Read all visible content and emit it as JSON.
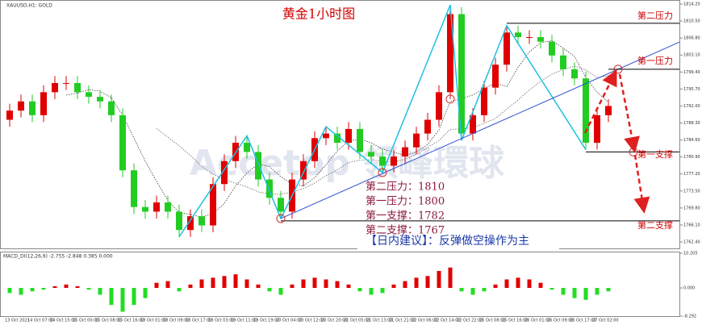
{
  "chart_data": [
    {
      "type": "candlestick",
      "title": "黄金1小时图",
      "symbol": "XAUUSD,H1: GOLD",
      "watermark": "Accetop 領峰環球",
      "up_color": "#e00000",
      "down_color": "#22cc22",
      "categories": [
        "13 Oct 2021",
        null,
        "14 Oct 07:00",
        null,
        "14 Oct 15:00",
        null,
        "15 Oct 00:00",
        null,
        "15 Oct 08:00",
        null,
        "15 Oct 16:00",
        null,
        "18 Oct 01:00",
        null,
        "18 Oct 09:00",
        null,
        "18 Oct 17:00",
        null,
        "19 Oct 03:00",
        null,
        "19 Oct 11:00",
        null,
        "19 Oct 19:00",
        null,
        "20 Oct 04:00",
        null,
        "20 Oct 12:00",
        null,
        "20 Oct 20:00",
        null,
        "21 Oct 05:00",
        null,
        "21 Oct 13:00",
        null,
        "21 Oct 21:00",
        null,
        "22 Oct 06:00",
        null,
        "22 Oct 14:00",
        null,
        "22 Oct 22:00",
        null,
        "25 Oct 08:00",
        null,
        "25 Oct 16:00",
        null,
        "26 Oct 01:00",
        null,
        "26 Oct 09:00",
        null,
        "26 Oct 17:00",
        null,
        "27 Oct 02:00",
        null
      ],
      "open": [
        1789,
        1791,
        1793,
        1790,
        1795,
        1797,
        1797,
        1795,
        1794,
        1793,
        1790,
        1778,
        1770,
        1769,
        1771,
        1769,
        1765,
        1768,
        1766,
        1775,
        1780,
        1784,
        1782,
        1776,
        1772,
        1769,
        1776,
        1780,
        1785,
        1786,
        1784,
        1787,
        1782,
        1781,
        1779,
        1781,
        1783,
        1786,
        1789,
        1795,
        1812,
        1786,
        1790,
        1796,
        1801,
        1808,
        1807,
        1807,
        1806,
        1803,
        1800,
        1798,
        1784,
        1790
      ],
      "high": [
        1792.5,
        1794.5,
        1794.5,
        1796.5,
        1798.5,
        1798.5,
        1798.5,
        1796.5,
        1795.5,
        1794.5,
        1791.5,
        1779.5,
        1771.5,
        1772.5,
        1772.5,
        1770.5,
        1769.5,
        1769.5,
        1776.5,
        1781.5,
        1785.5,
        1785.5,
        1783.5,
        1777.5,
        1773.5,
        1777.5,
        1781.5,
        1786.5,
        1787.5,
        1787.5,
        1788.5,
        1788.5,
        1783.5,
        1782.5,
        1782.5,
        1784.5,
        1787.5,
        1790.5,
        1796.5,
        1814,
        1813.5,
        1791.5,
        1797.5,
        1802.5,
        1809.5,
        1809.5,
        1808.5,
        1808.5,
        1807.5,
        1804.5,
        1801.5,
        1799.5,
        1791.5,
        1793.5
      ],
      "low": [
        1787.5,
        1789.5,
        1788.5,
        1788.5,
        1793.5,
        1795.5,
        1793.5,
        1792.5,
        1791.5,
        1788.5,
        1776.5,
        1768.5,
        1767.5,
        1767.5,
        1767.5,
        1763.5,
        1763.5,
        1764.5,
        1764.5,
        1773.5,
        1778.5,
        1780.5,
        1774.5,
        1770.5,
        1767.5,
        1767.5,
        1774.5,
        1778.5,
        1783.5,
        1782.5,
        1782.5,
        1780.5,
        1779.5,
        1777.5,
        1777.5,
        1779.5,
        1781.5,
        1784.5,
        1787.5,
        1793.5,
        1784.5,
        1784.5,
        1788.5,
        1794.5,
        1799.5,
        1805.5,
        1805.5,
        1804.5,
        1801.5,
        1798.5,
        1796.5,
        1782.5,
        1782.5,
        1788.5
      ],
      "close": [
        1791,
        1793,
        1790,
        1795,
        1797,
        1797,
        1795,
        1794,
        1793,
        1790,
        1778,
        1770,
        1769,
        1771,
        1769,
        1765,
        1768,
        1766,
        1775,
        1780,
        1784,
        1782,
        1776,
        1772,
        1769,
        1776,
        1780,
        1785,
        1786,
        1784,
        1787,
        1782,
        1781,
        1779,
        1781,
        1783,
        1786,
        1789,
        1795,
        1812,
        1786,
        1790,
        1796,
        1801,
        1808,
        1807,
        1807,
        1806,
        1803,
        1800,
        1798,
        1784,
        1790,
        1792
      ],
      "ylim": [
        1761.7,
        1814.2
      ],
      "yticks": [
        {
          "value": 1814.2,
          "label": "1814.20"
        },
        {
          "value": 1810.5,
          "label": "1810.50"
        },
        {
          "value": 1806.8,
          "label": "1806.80"
        },
        {
          "value": 1803.1,
          "label": "1803.10"
        },
        {
          "value": 1799.4,
          "label": "1799.40"
        },
        {
          "value": 1795.7,
          "label": "1795.70"
        },
        {
          "value": 1792,
          "label": "1792.00"
        },
        {
          "value": 1788.3,
          "label": "1788.30"
        },
        {
          "value": 1784.6,
          "label": "1784.60"
        },
        {
          "value": 1780.9,
          "label": "1780.90"
        },
        {
          "value": 1777.2,
          "label": "1777.20"
        },
        {
          "value": 1773.5,
          "label": "1773.50"
        },
        {
          "value": 1769.8,
          "label": "1769.80"
        },
        {
          "value": 1766.1,
          "label": "1766.10"
        },
        {
          "value": 1762.4,
          "label": "1762.40"
        }
      ],
      "levels": [
        {
          "label": "第二压力",
          "value": 1810
        },
        {
          "label": "第一压力",
          "value": 1800
        },
        {
          "label": "第一支撑",
          "value": 1782
        },
        {
          "label": "第二支撑",
          "value": 1767
        }
      ],
      "notes": [
        "第二压力：1810",
        "第一压力：1800",
        "第一支撑：1782",
        "第二支撑：1767"
      ],
      "advice": "【日内建议】：反弹做空操作为主"
    },
    {
      "type": "histogram",
      "title": "MACD_DI(12,26,9) -2.755 -2.848 0.385 0.000",
      "pos_color": "#e00000",
      "neg_color": "#22dd22",
      "values": [
        -1.5,
        -2,
        -1,
        -0.5,
        0.5,
        1,
        0.5,
        -0.5,
        -2,
        -5,
        -7,
        -5,
        -3,
        1.5,
        2,
        -1,
        1,
        2.5,
        3,
        3.5,
        4,
        2.5,
        1,
        -1,
        -2,
        1,
        2.5,
        3,
        2.5,
        2,
        1,
        -1,
        -2,
        -1.5,
        1,
        2,
        3,
        3.5,
        5,
        6,
        -1,
        -2,
        -1,
        1,
        2.5,
        3,
        2.5,
        1.5,
        -0.5,
        -2,
        -3,
        -3.5,
        -2,
        -1
      ],
      "ylim": [
        -8.292,
        10.205
      ],
      "yticks": [
        10.205,
        {
          "value": 0,
          "label": "0.000"
        },
        -8.292
      ]
    }
  ]
}
